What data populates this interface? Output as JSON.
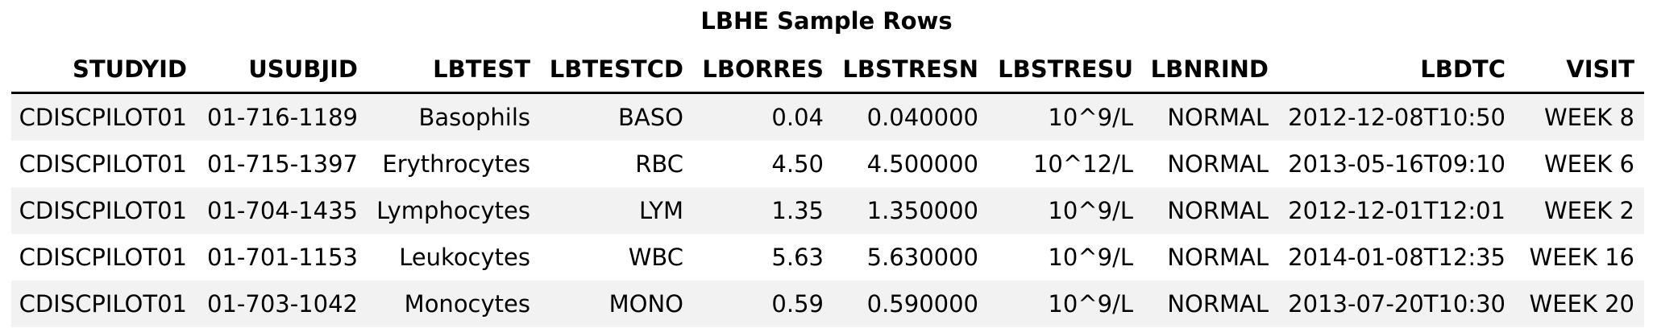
{
  "title": "LBHE Sample Rows",
  "columns": [
    "STUDYID",
    "USUBJID",
    "LBTEST",
    "LBTESTCD",
    "LBORRES",
    "LBSTRESN",
    "LBSTRESU",
    "LBNRIND",
    "LBDTC",
    "VISIT"
  ],
  "rows": [
    [
      "CDISCPILOT01",
      "01-716-1189",
      "Basophils",
      "BASO",
      "0.04",
      "0.040000",
      "10^9/L",
      "NORMAL",
      "2012-12-08T10:50",
      "WEEK 8"
    ],
    [
      "CDISCPILOT01",
      "01-715-1397",
      "Erythrocytes",
      "RBC",
      "4.50",
      "4.500000",
      "10^12/L",
      "NORMAL",
      "2013-05-16T09:10",
      "WEEK 6"
    ],
    [
      "CDISCPILOT01",
      "01-704-1435",
      "Lymphocytes",
      "LYM",
      "1.35",
      "1.350000",
      "10^9/L",
      "NORMAL",
      "2012-12-01T12:01",
      "WEEK 2"
    ],
    [
      "CDISCPILOT01",
      "01-701-1153",
      "Leukocytes",
      "WBC",
      "5.63",
      "5.630000",
      "10^9/L",
      "NORMAL",
      "2014-01-08T12:35",
      "WEEK 16"
    ],
    [
      "CDISCPILOT01",
      "01-703-1042",
      "Monocytes",
      "MONO",
      "0.59",
      "0.590000",
      "10^9/L",
      "NORMAL",
      "2013-07-20T10:30",
      "WEEK 20"
    ]
  ],
  "colors": {
    "stripe": "#f2f2f2",
    "text": "#000000",
    "rule": "#000000"
  }
}
